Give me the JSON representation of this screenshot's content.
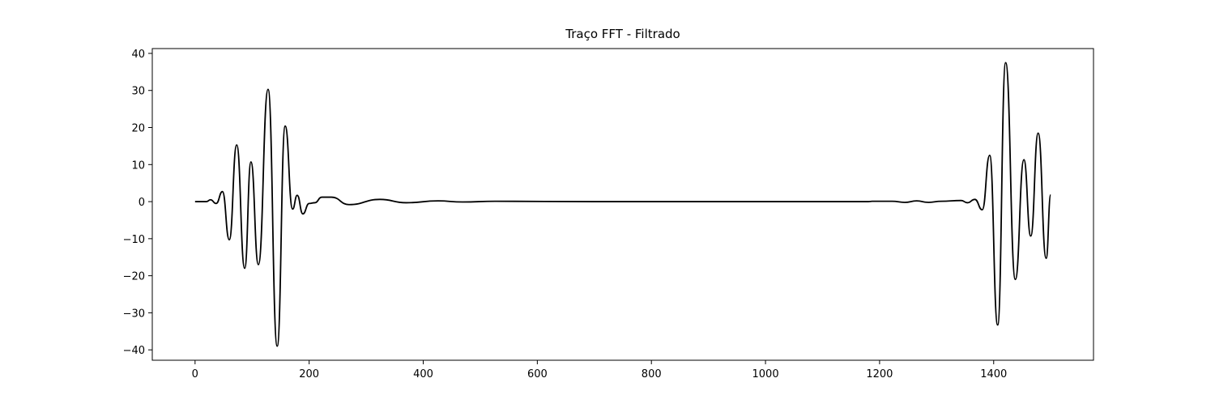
{
  "chart_data": {
    "type": "line",
    "title": "Traço FFT - Filtrado",
    "x": [
      0,
      20,
      27,
      37,
      48,
      60,
      73,
      87,
      98,
      111,
      128,
      144,
      158,
      171,
      179,
      189,
      200,
      210,
      222,
      239,
      270,
      324,
      370,
      426,
      469,
      526,
      700,
      1000,
      1180,
      1187,
      1222,
      1244,
      1265,
      1286,
      1308,
      1343,
      1354,
      1367,
      1380,
      1393,
      1407,
      1421,
      1438,
      1453,
      1465,
      1478,
      1492,
      1500
    ],
    "series": [
      {
        "color": "#000000",
        "values": [
          0,
          0,
          0.5,
          -0.5,
          2.7,
          -10.3,
          15.3,
          -18,
          10.7,
          -17,
          30.3,
          -39,
          20.4,
          -2,
          1.7,
          -3.3,
          -0.5,
          -0.3,
          1.2,
          1.2,
          -0.8,
          0.6,
          -0.3,
          0.2,
          -0.1,
          0.1,
          0,
          0,
          0,
          0.1,
          0.1,
          -0.2,
          0.2,
          -0.2,
          0.1,
          0.3,
          -0.3,
          0.6,
          -2.2,
          12.5,
          -33.3,
          37.5,
          -21,
          11.3,
          -9.3,
          18.5,
          -15.3,
          1.8
        ]
      }
    ],
    "xlim": [
      -75,
      1575
    ],
    "ylim": [
      -42.8,
      41.3
    ],
    "xticks": [
      0,
      200,
      400,
      600,
      800,
      1000,
      1200,
      1400
    ],
    "yticks": [
      {
        "value": -40,
        "label": "−40"
      },
      {
        "value": -30,
        "label": "−30"
      },
      {
        "value": -20,
        "label": "−20"
      },
      {
        "value": -10,
        "label": "−10"
      },
      0,
      10,
      20,
      30,
      40
    ]
  }
}
